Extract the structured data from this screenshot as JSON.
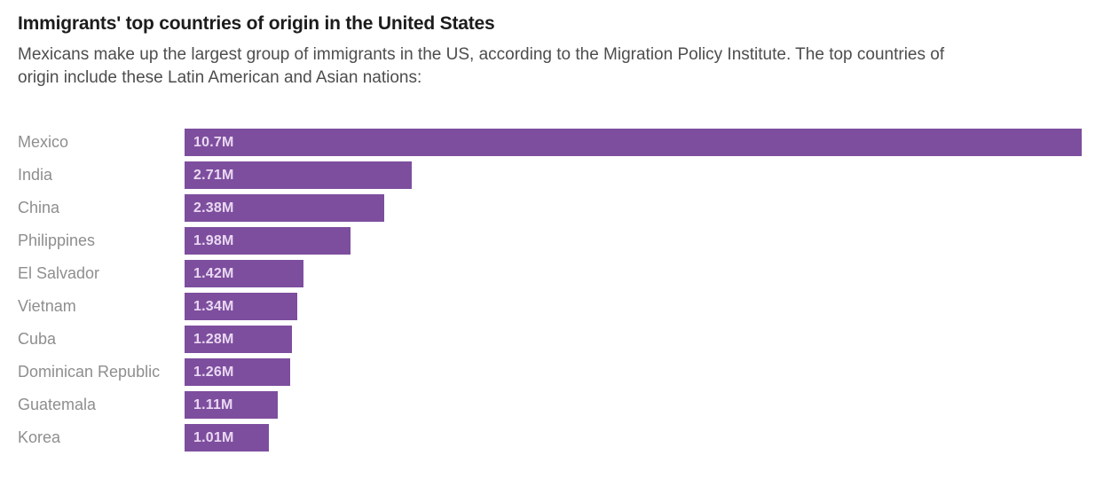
{
  "header": {
    "title": "Immigrants' top countries of origin in the United States",
    "subtitle": "Mexicans make up the largest group of immigrants in the US, according to the Migration Policy Institute. The top countries of origin include these Latin American and Asian nations:"
  },
  "chart_data": {
    "type": "bar",
    "orientation": "horizontal",
    "title": "Immigrants' top countries of origin in the United States",
    "subtitle": "Mexicans make up the largest group of immigrants in the US, according to the Migration Policy Institute. The top countries of origin include these Latin American and Asian nations:",
    "categories": [
      "Mexico",
      "India",
      "China",
      "Philippines",
      "El Salvador",
      "Vietnam",
      "Cuba",
      "Dominican Republic",
      "Guatemala",
      "Korea"
    ],
    "values": [
      10.7,
      2.71,
      2.38,
      1.98,
      1.42,
      1.34,
      1.28,
      1.26,
      1.11,
      1.01
    ],
    "value_labels": [
      "10.7M",
      "2.71M",
      "2.38M",
      "1.98M",
      "1.42M",
      "1.34M",
      "1.28M",
      "1.26M",
      "1.11M",
      "1.01M"
    ],
    "xlim": [
      0,
      10.7
    ],
    "xmax": 10.7,
    "grid": "off",
    "legend": "none",
    "bar_color": "#7d4e9e",
    "value_label_color": "#e9d8f1",
    "category_label_color": "#8e8e8e"
  }
}
